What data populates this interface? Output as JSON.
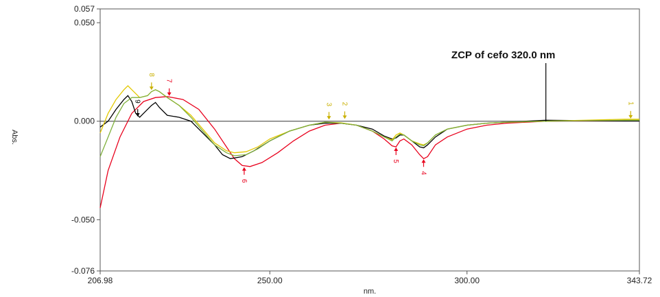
{
  "chart_data": {
    "type": "line",
    "title": "",
    "xlabel": "nm.",
    "ylabel": "Abs.",
    "xlim": [
      206.98,
      343.72
    ],
    "ylim": [
      -0.076,
      0.057
    ],
    "grid": false,
    "x_ticks": [
      "206.98",
      "250.00",
      "300.00",
      "343.72"
    ],
    "y_ticks": [
      "0.057",
      "0.050",
      "0.000",
      "-0.050",
      "-0.076"
    ],
    "x_tick_values": [
      206.98,
      250.0,
      300.0,
      343.72
    ],
    "y_tick_values": [
      0.057,
      0.05,
      0.0,
      -0.05,
      -0.076
    ],
    "annotation": {
      "text": "ZCP of cefo 320.0 nm",
      "x": 320.0
    },
    "series": [
      {
        "color": "#e8001c",
        "points": [
          [
            206.98,
            -0.044
          ],
          [
            209,
            -0.025
          ],
          [
            212,
            -0.008
          ],
          [
            215,
            0.004
          ],
          [
            218,
            0.01
          ],
          [
            221,
            0.012
          ],
          [
            224,
            0.0125
          ],
          [
            228,
            0.011
          ],
          [
            232,
            0.006
          ],
          [
            236,
            -0.004
          ],
          [
            239,
            -0.013
          ],
          [
            241,
            -0.019
          ],
          [
            243,
            -0.0225
          ],
          [
            245,
            -0.023
          ],
          [
            248,
            -0.021
          ],
          [
            252,
            -0.016
          ],
          [
            256,
            -0.01
          ],
          [
            260,
            -0.005
          ],
          [
            264,
            -0.002
          ],
          [
            268,
            -0.001
          ],
          [
            272,
            -0.002
          ],
          [
            276,
            -0.005
          ],
          [
            279,
            -0.009
          ],
          [
            281,
            -0.0125
          ],
          [
            282,
            -0.013
          ],
          [
            283,
            -0.01
          ],
          [
            284,
            -0.009
          ],
          [
            286,
            -0.012
          ],
          [
            288,
            -0.017
          ],
          [
            289,
            -0.019
          ],
          [
            290,
            -0.018
          ],
          [
            292,
            -0.012
          ],
          [
            295,
            -0.008
          ],
          [
            300,
            -0.004
          ],
          [
            305,
            -0.002
          ],
          [
            310,
            -0.001
          ],
          [
            315,
            -0.0005
          ],
          [
            320,
            0.0
          ],
          [
            330,
            0.0002
          ],
          [
            340,
            0.0003
          ],
          [
            343.72,
            0.0003
          ]
        ]
      },
      {
        "color": "#000000",
        "points": [
          [
            206.98,
            -0.003
          ],
          [
            209,
            0.0
          ],
          [
            211,
            0.006
          ],
          [
            213,
            0.011
          ],
          [
            214,
            0.013
          ],
          [
            215,
            0.01
          ],
          [
            216,
            0.004
          ],
          [
            217,
            0.002
          ],
          [
            218,
            0.004
          ],
          [
            220,
            0.008
          ],
          [
            221,
            0.0095
          ],
          [
            222,
            0.007
          ],
          [
            224,
            0.003
          ],
          [
            227,
            0.002
          ],
          [
            230,
            0.0
          ],
          [
            233,
            -0.006
          ],
          [
            236,
            -0.012
          ],
          [
            238,
            -0.017
          ],
          [
            240,
            -0.019
          ],
          [
            243,
            -0.018
          ],
          [
            246,
            -0.015
          ],
          [
            250,
            -0.01
          ],
          [
            255,
            -0.005
          ],
          [
            260,
            -0.002
          ],
          [
            264,
            -0.001
          ],
          [
            268,
            -0.001
          ],
          [
            272,
            -0.002
          ],
          [
            276,
            -0.004
          ],
          [
            279,
            -0.0075
          ],
          [
            281,
            -0.009
          ],
          [
            282,
            -0.0085
          ],
          [
            283,
            -0.007
          ],
          [
            284,
            -0.007
          ],
          [
            286,
            -0.01
          ],
          [
            288,
            -0.013
          ],
          [
            289,
            -0.0135
          ],
          [
            290,
            -0.012
          ],
          [
            292,
            -0.008
          ],
          [
            295,
            -0.004
          ],
          [
            300,
            -0.002
          ],
          [
            305,
            -0.001
          ],
          [
            310,
            -0.0005
          ],
          [
            315,
            0.0
          ],
          [
            320,
            0.0005
          ],
          [
            330,
            0.0003
          ],
          [
            340,
            0.0002
          ],
          [
            343.72,
            0.0002
          ]
        ]
      },
      {
        "color": "#e3c800",
        "points": [
          [
            206.98,
            -0.006
          ],
          [
            209,
            0.004
          ],
          [
            211,
            0.011
          ],
          [
            213,
            0.016
          ],
          [
            214,
            0.018
          ],
          [
            215,
            0.016
          ],
          [
            217,
            0.012
          ],
          [
            219,
            0.013
          ],
          [
            220,
            0.015
          ],
          [
            221,
            0.016
          ],
          [
            222,
            0.015
          ],
          [
            224,
            0.012
          ],
          [
            227,
            0.008
          ],
          [
            230,
            0.003
          ],
          [
            233,
            -0.004
          ],
          [
            236,
            -0.011
          ],
          [
            239,
            -0.015
          ],
          [
            241,
            -0.016
          ],
          [
            244,
            -0.0155
          ],
          [
            247,
            -0.013
          ],
          [
            250,
            -0.009
          ],
          [
            255,
            -0.005
          ],
          [
            260,
            -0.002
          ],
          [
            264,
            -0.0005
          ],
          [
            268,
            -0.0008
          ],
          [
            272,
            -0.002
          ],
          [
            276,
            -0.005
          ],
          [
            279,
            -0.008
          ],
          [
            281,
            -0.0095
          ],
          [
            282,
            -0.007
          ],
          [
            283,
            -0.006
          ],
          [
            284,
            -0.007
          ],
          [
            286,
            -0.01
          ],
          [
            288,
            -0.0115
          ],
          [
            289,
            -0.012
          ],
          [
            290,
            -0.011
          ],
          [
            292,
            -0.007
          ],
          [
            295,
            -0.004
          ],
          [
            300,
            -0.002
          ],
          [
            305,
            -0.001
          ],
          [
            310,
            -0.0005
          ],
          [
            320,
            0.0
          ],
          [
            330,
            0.0005
          ],
          [
            340,
            0.001
          ],
          [
            343.72,
            0.001
          ]
        ]
      },
      {
        "color": "#7fb03c",
        "points": [
          [
            206.98,
            -0.018
          ],
          [
            209,
            -0.008
          ],
          [
            211,
            0.002
          ],
          [
            213,
            0.009
          ],
          [
            215,
            0.012
          ],
          [
            217,
            0.012
          ],
          [
            219,
            0.013
          ],
          [
            220,
            0.015
          ],
          [
            221,
            0.016
          ],
          [
            222,
            0.015
          ],
          [
            224,
            0.012
          ],
          [
            227,
            0.008
          ],
          [
            230,
            0.002
          ],
          [
            233,
            -0.005
          ],
          [
            236,
            -0.012
          ],
          [
            239,
            -0.016
          ],
          [
            241,
            -0.0175
          ],
          [
            244,
            -0.017
          ],
          [
            247,
            -0.014
          ],
          [
            250,
            -0.01
          ],
          [
            255,
            -0.005
          ],
          [
            260,
            -0.002
          ],
          [
            264,
            -0.0005
          ],
          [
            268,
            -0.001
          ],
          [
            272,
            -0.002
          ],
          [
            276,
            -0.005
          ],
          [
            279,
            -0.008
          ],
          [
            281,
            -0.01
          ],
          [
            282,
            -0.008
          ],
          [
            283,
            -0.0065
          ],
          [
            284,
            -0.007
          ],
          [
            286,
            -0.01
          ],
          [
            288,
            -0.012
          ],
          [
            289,
            -0.0125
          ],
          [
            290,
            -0.011
          ],
          [
            292,
            -0.007
          ],
          [
            295,
            -0.004
          ],
          [
            300,
            -0.002
          ],
          [
            305,
            -0.001
          ],
          [
            310,
            -0.0005
          ],
          [
            320,
            0.0
          ],
          [
            330,
            0.0003
          ],
          [
            340,
            0.0005
          ],
          [
            343.72,
            0.0005
          ]
        ]
      }
    ],
    "peak_labels": [
      {
        "label": "1",
        "x": 341.5,
        "y": 0.001,
        "color": "#c9b000"
      },
      {
        "label": "2",
        "x": 269.0,
        "y": 0.0008,
        "color": "#c9b000"
      },
      {
        "label": "3",
        "x": 265.0,
        "y": 0.0005,
        "color": "#c9b000"
      },
      {
        "label": "4",
        "x": 289.0,
        "y": -0.019,
        "color": "#e8001c"
      },
      {
        "label": "5",
        "x": 282.0,
        "y": -0.013,
        "color": "#e8001c"
      },
      {
        "label": "6",
        "x": 243.5,
        "y": -0.023,
        "color": "#e8001c"
      },
      {
        "label": "7",
        "x": 224.5,
        "y": 0.0125,
        "color": "#e8001c"
      },
      {
        "label": "8",
        "x": 220.0,
        "y": 0.0155,
        "color": "#c9b000"
      },
      {
        "label": "9",
        "x": 216.5,
        "y": 0.002,
        "color": "#000000"
      }
    ]
  }
}
